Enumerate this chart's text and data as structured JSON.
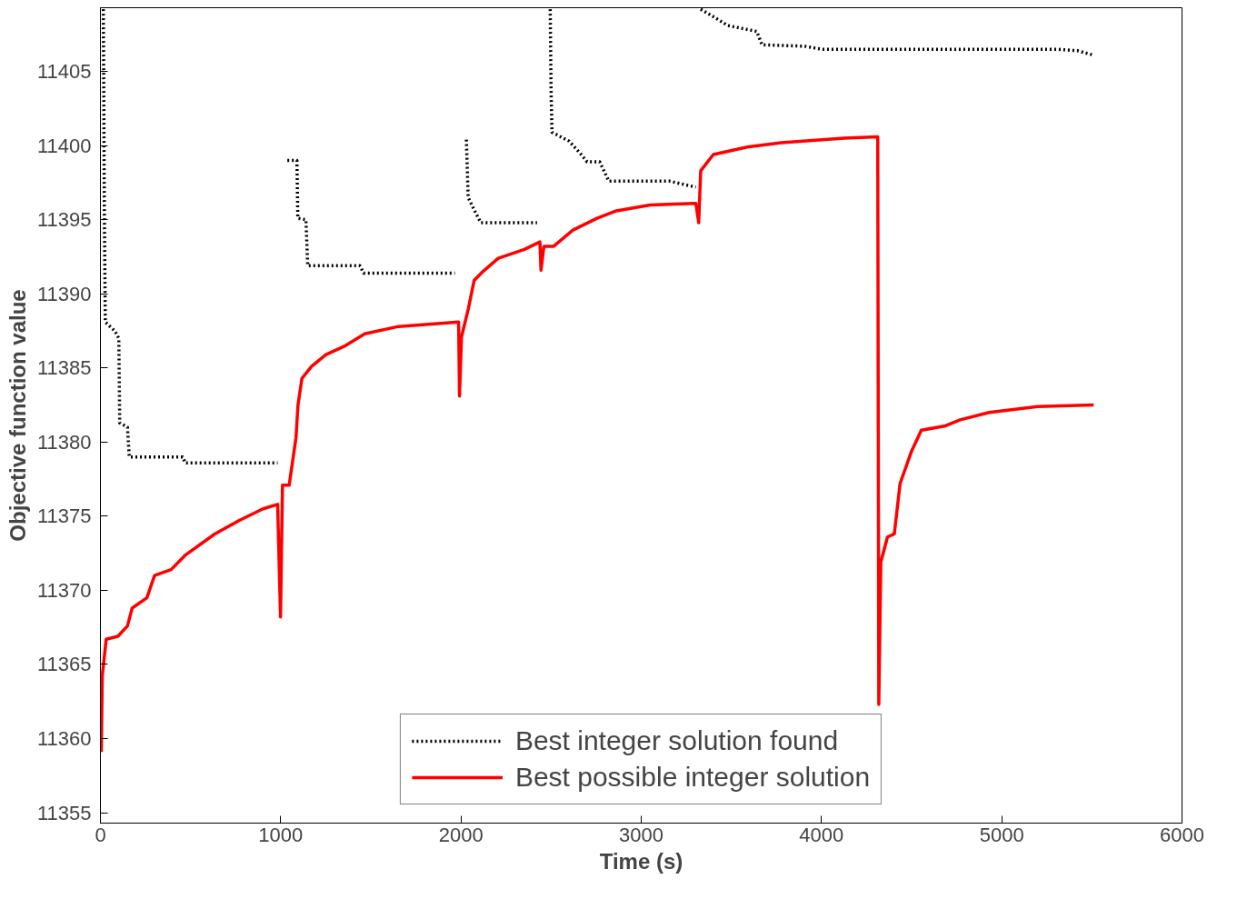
{
  "chart_data": {
    "type": "line",
    "xlabel": "Time (s)",
    "ylabel": "Objective function value",
    "xlim": [
      0,
      6000
    ],
    "ylim": [
      11354.3,
      11409.3
    ],
    "xticks": [
      0,
      1000,
      2000,
      3000,
      4000,
      5000,
      6000
    ],
    "yticks": [
      11355,
      11360,
      11365,
      11370,
      11375,
      11380,
      11385,
      11390,
      11395,
      11400,
      11405
    ],
    "grid": false,
    "legend": "bottom",
    "marker": "none",
    "series": [
      {
        "name": "Best integer solution found",
        "color": "#000000",
        "line_style": "dotted",
        "x": [
          16,
          22,
          27,
          80,
          102,
          107,
          150,
          160,
          456,
          470,
          983,
          1010,
          1037,
          1090,
          1095,
          1140,
          1150,
          1439,
          1460,
          1966,
          2000,
          2030,
          2040,
          2080,
          2110,
          2422,
          2460,
          2495,
          2500,
          2505,
          2600,
          2660,
          2700,
          2770,
          2820,
          3158,
          3303,
          3316,
          3330,
          3400,
          3480,
          3641,
          3670,
          3910,
          4000,
          5306,
          5420,
          5510
        ],
        "values": [
          11409.2,
          11395,
          11388.1,
          11387.5,
          11387,
          11381.3,
          11381,
          11379,
          11379,
          11378.6,
          11378.6,
          null,
          11399,
          11399,
          11395.1,
          11395,
          11391.9,
          11391.9,
          11391.4,
          11391.4,
          null,
          11400.4,
          11396.5,
          11395.5,
          11394.8,
          11394.8,
          null,
          11409.2,
          11403.6,
          11400.9,
          11400.3,
          11399.5,
          11398.9,
          11398.9,
          11397.6,
          11397.6,
          11397.2,
          null,
          11409.2,
          11408.7,
          11408.1,
          11407.7,
          11406.8,
          11406.7,
          11406.5,
          11406.5,
          11406.4,
          11406.1
        ]
      },
      {
        "name": "Best possible integer solution",
        "color": "#ff0000",
        "line_style": "solid",
        "x": [
          5,
          10,
          32,
          97,
          150,
          176,
          258,
          300,
          392,
          473,
          634,
          768,
          902,
          983,
          999,
          1010,
          1047,
          1085,
          1096,
          1118,
          1171,
          1251,
          1359,
          1466,
          1654,
          1987,
          1992,
          2003,
          2041,
          2073,
          2121,
          2207,
          2352,
          2438,
          2444,
          2460,
          2513,
          2621,
          2755,
          2862,
          3050,
          3303,
          3319,
          3330,
          3400,
          3588,
          3776,
          4125,
          4312,
          4318,
          4329,
          4366,
          4404,
          4436,
          4500,
          4554,
          4688,
          4769,
          4930,
          5199,
          5510
        ],
        "values": [
          11359.1,
          11364.2,
          11366.7,
          11366.9,
          11367.6,
          11368.8,
          11369.5,
          11371,
          11371.4,
          11372.4,
          11373.8,
          11374.7,
          11375.5,
          11375.8,
          11368.2,
          11377.1,
          11377.1,
          11380.3,
          11382.5,
          11384.3,
          11385.1,
          11385.9,
          11386.5,
          11387.3,
          11387.8,
          11388.1,
          11383.1,
          11387.1,
          11389,
          11390.9,
          11391.5,
          11392.4,
          11393,
          11393.5,
          11391.6,
          11393.2,
          11393.2,
          11394.3,
          11395.1,
          11395.6,
          11396,
          11396.1,
          11394.8,
          11398.3,
          11399.4,
          11399.9,
          11400.2,
          11400.5,
          11400.6,
          11362.3,
          11371.9,
          11373.6,
          11373.8,
          11377.2,
          11379.4,
          11380.8,
          11381.1,
          11381.5,
          11382,
          11382.4,
          11382.5
        ]
      }
    ]
  }
}
